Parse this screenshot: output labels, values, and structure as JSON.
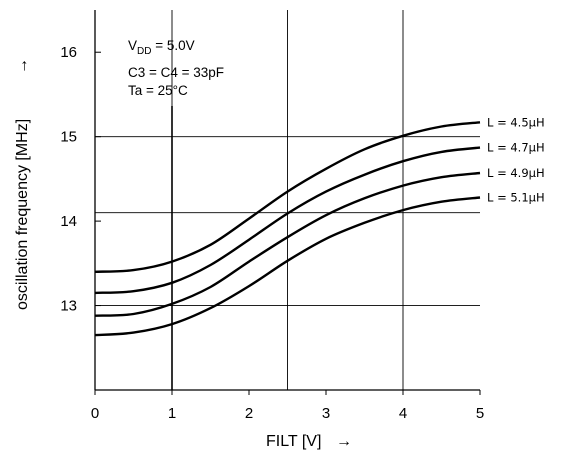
{
  "chart_data": {
    "type": "line",
    "xlabel": "FILT [V]",
    "xlabel_arrow": "→",
    "ylabel": "oscillation frequency [MHz]",
    "ylabel_arrow": "→",
    "xlim": [
      0,
      5
    ],
    "ylim": [
      12,
      16.5
    ],
    "xticks": [
      "0",
      "1",
      "2",
      "3",
      "4",
      "5"
    ],
    "yticks": [
      "13",
      "14",
      "15",
      "16"
    ],
    "grid": {
      "vertical_x": [
        1,
        2.5,
        4
      ],
      "horizontal_y": [
        13,
        14.1,
        15
      ]
    },
    "conditions": [
      {
        "key": "vdd",
        "main": "V",
        "sub": "DD",
        "rest": " = 5.0V"
      },
      {
        "key": "cap",
        "text": "C3 = C4 = 33pF"
      },
      {
        "key": "ta",
        "text": "Ta = 25°C"
      }
    ],
    "x": [
      0,
      0.5,
      1,
      1.5,
      2,
      2.5,
      3,
      3.5,
      4,
      4.5,
      5
    ],
    "series": [
      {
        "name": "L = 4.5μH",
        "values": [
          13.4,
          13.42,
          13.52,
          13.72,
          14.03,
          14.35,
          14.62,
          14.85,
          15.01,
          15.12,
          15.17
        ],
        "color": "#000000"
      },
      {
        "name": "L = 4.7μH",
        "values": [
          13.15,
          13.17,
          13.27,
          13.48,
          13.78,
          14.09,
          14.35,
          14.55,
          14.71,
          14.82,
          14.87
        ],
        "color": "#000000"
      },
      {
        "name": "L = 4.9μH",
        "values": [
          12.88,
          12.9,
          13.02,
          13.22,
          13.52,
          13.81,
          14.07,
          14.27,
          14.42,
          14.52,
          14.57
        ],
        "color": "#000000"
      },
      {
        "name": "L = 5.1μH",
        "values": [
          12.65,
          12.68,
          12.78,
          12.97,
          13.23,
          13.53,
          13.79,
          13.98,
          14.13,
          14.23,
          14.28
        ],
        "color": "#000000"
      }
    ]
  }
}
